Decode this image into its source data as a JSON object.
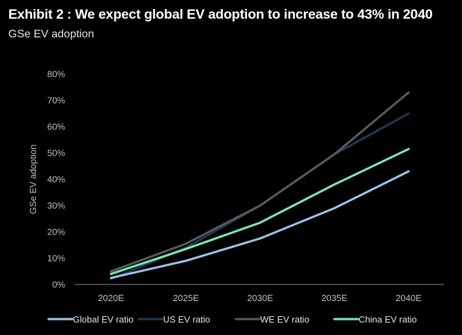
{
  "header": {
    "title": "Exhibit 2 : We expect global EV adoption to increase to 43% in 2040",
    "subtitle": "GSe EV adoption"
  },
  "chart_data": {
    "type": "line",
    "title": "Exhibit 2 : We expect global EV adoption to increase to 43% in 2040",
    "subtitle": "GSe EV adoption",
    "xlabel": "",
    "ylabel": "GSe EV adoption",
    "categories": [
      "2020E",
      "2025E",
      "2030E",
      "2035E",
      "2040E"
    ],
    "ylim": [
      0,
      80
    ],
    "y_ticks": [
      "0%",
      "10%",
      "20%",
      "30%",
      "40%",
      "50%",
      "60%",
      "70%",
      "80%"
    ],
    "y_unit": "%",
    "grid": false,
    "legend_position": "bottom",
    "series": [
      {
        "name": "Global EV ratio",
        "color": "#9dc3e6",
        "values": [
          2.5,
          9,
          17.5,
          29,
          43
        ]
      },
      {
        "name": "US EV ratio",
        "color": "#1f3a52",
        "values": [
          2,
          14,
          30,
          49.5,
          65
        ]
      },
      {
        "name": "WE EV ratio",
        "color": "#595959",
        "values": [
          5,
          15.5,
          30,
          49.5,
          73
        ]
      },
      {
        "name": "China EV ratio",
        "color": "#7ce8b0",
        "values": [
          4,
          13.5,
          23.5,
          38,
          51.5
        ]
      }
    ]
  }
}
